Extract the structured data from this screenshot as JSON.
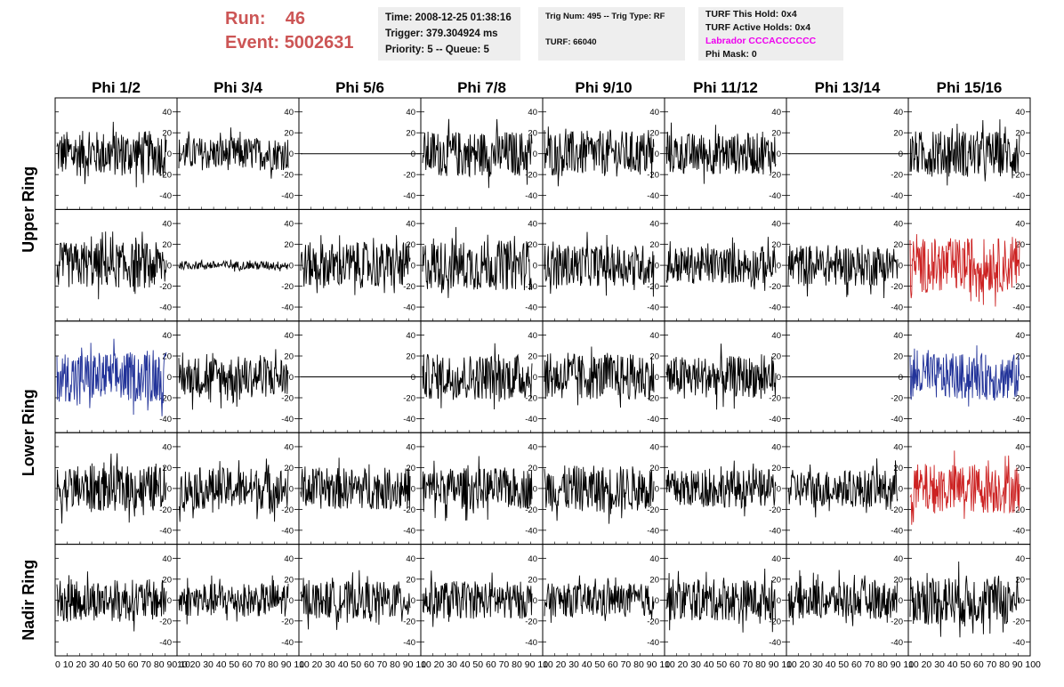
{
  "run_info": {
    "run_label": "Run:",
    "run_value": "46",
    "event_label": "Event:",
    "event_value": "5002631"
  },
  "info_box_1": {
    "time": "Time: 2008-12-25 01:38:16",
    "trigger": "Trigger: 379.304924 ms",
    "priority": "Priority: 5 -- Queue: 5"
  },
  "info_box_2": {
    "trig": "Trig Num: 495 -- Trig Type: RF",
    "turf": "TURF: 66040"
  },
  "info_box_3": {
    "this_hold": "TURF This Hold: 0x4",
    "active_holds": "TURF Active Holds: 0x4",
    "labrador": "Labrador CCCACCCCCC",
    "phi_mask": "Phi Mask: 0"
  },
  "colors": {
    "run_text": "#cc5555",
    "labrador_text": "#ee00ee",
    "trace_default": "#000000",
    "trace_red": "#cc2222",
    "trace_blue": "#223399",
    "box_bg": "#eeeeee"
  },
  "chart_data": {
    "type": "line",
    "columns": [
      "Phi 1/2",
      "Phi 3/4",
      "Phi 5/6",
      "Phi 7/8",
      "Phi 9/10",
      "Phi 11/12",
      "Phi 13/14",
      "Phi 15/16"
    ],
    "ring_labels": [
      {
        "text": "Upper Ring",
        "rows": [
          0,
          1
        ]
      },
      {
        "text": "Lower Ring",
        "rows": [
          2,
          3
        ]
      },
      {
        "text": "Nadir Ring",
        "rows": [
          4
        ]
      }
    ],
    "xlim": [
      0,
      100
    ],
    "ylim": [
      -50,
      50
    ],
    "yticks": [
      -40,
      -20,
      0,
      20,
      40
    ],
    "xtick_text": [
      "0 10 20 30 40 50 60 70 80 90 10",
      "10 20 30 40 50 60 70 80 90 10",
      "10 20 30 40 50 60 70 80 90 10",
      "10 20 30 40 50 60 70 80 90 10",
      "10 20 30 40 50 60 70 80 90 10",
      "10 20 30 40 50 60 70 80 90 10",
      "10 20 30 40 50 60 70 80 90 10",
      "10 20 30 40 50 60 70 80 90 100"
    ],
    "grid": false,
    "panels": [
      [
        {
          "amp": 22,
          "color": "default"
        },
        {
          "amp": 16,
          "color": "default"
        },
        {
          "amp": 0,
          "color": "default"
        },
        {
          "amp": 22,
          "color": "default"
        },
        {
          "amp": 22,
          "color": "default"
        },
        {
          "amp": 20,
          "color": "default"
        },
        {
          "amp": 0,
          "color": "default"
        },
        {
          "amp": 22,
          "color": "default"
        }
      ],
      [
        {
          "amp": 22,
          "color": "default"
        },
        {
          "amp": 4,
          "color": "default"
        },
        {
          "amp": 22,
          "color": "default"
        },
        {
          "amp": 24,
          "color": "default"
        },
        {
          "amp": 20,
          "color": "default"
        },
        {
          "amp": 18,
          "color": "default"
        },
        {
          "amp": 20,
          "color": "default"
        },
        {
          "amp": 26,
          "color": "red"
        }
      ],
      [
        {
          "amp": 24,
          "color": "blue"
        },
        {
          "amp": 20,
          "color": "default"
        },
        {
          "amp": 0,
          "color": "default"
        },
        {
          "amp": 22,
          "color": "default"
        },
        {
          "amp": 22,
          "color": "default"
        },
        {
          "amp": 20,
          "color": "default"
        },
        {
          "amp": 0,
          "color": "default"
        },
        {
          "amp": 22,
          "color": "blue"
        }
      ],
      [
        {
          "amp": 22,
          "color": "default"
        },
        {
          "amp": 20,
          "color": "default"
        },
        {
          "amp": 20,
          "color": "default"
        },
        {
          "amp": 20,
          "color": "default"
        },
        {
          "amp": 22,
          "color": "default"
        },
        {
          "amp": 18,
          "color": "default"
        },
        {
          "amp": 18,
          "color": "default"
        },
        {
          "amp": 24,
          "color": "red"
        }
      ],
      [
        {
          "amp": 20,
          "color": "default"
        },
        {
          "amp": 16,
          "color": "default"
        },
        {
          "amp": 18,
          "color": "default"
        },
        {
          "amp": 18,
          "color": "default"
        },
        {
          "amp": 16,
          "color": "default"
        },
        {
          "amp": 20,
          "color": "default"
        },
        {
          "amp": 18,
          "color": "default"
        },
        {
          "amp": 24,
          "color": "default"
        }
      ]
    ]
  }
}
